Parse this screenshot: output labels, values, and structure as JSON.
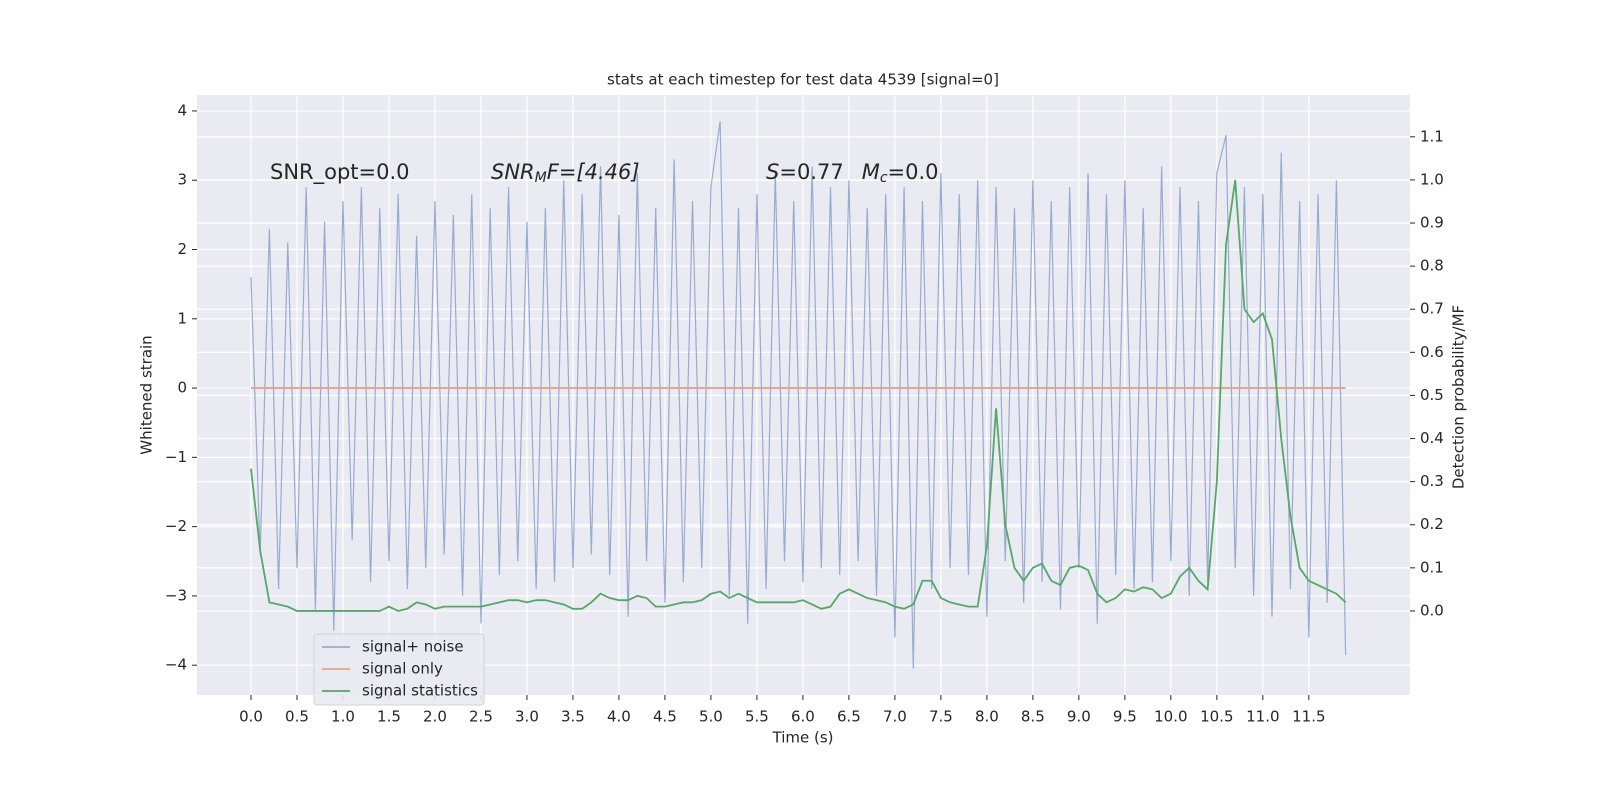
{
  "chart_data": {
    "type": "line",
    "title": "stats at each timestep for test data 4539 [signal=0]",
    "xlabel": "Time (s)",
    "ylabel": "Whitened strain",
    "y2label": "Detection probability/MF",
    "annotations": [
      {
        "parts": [
          "SNR_opt=0.0"
        ]
      },
      {
        "parts": [
          "SNR",
          "M",
          "F=[4.46]"
        ]
      },
      {
        "parts": [
          "S",
          "=0.77",
          "M",
          "c",
          "=0.0"
        ]
      }
    ],
    "x": [
      0.0,
      0.1,
      0.2,
      0.3,
      0.4,
      0.5,
      0.6,
      0.7,
      0.8,
      0.9,
      1.0,
      1.1,
      1.2,
      1.3,
      1.4,
      1.5,
      1.6,
      1.7,
      1.8,
      1.9,
      2.0,
      2.1,
      2.2,
      2.3,
      2.4,
      2.5,
      2.6,
      2.7,
      2.8,
      2.9,
      3.0,
      3.1,
      3.2,
      3.3,
      3.4,
      3.5,
      3.6,
      3.7,
      3.8,
      3.9,
      4.0,
      4.1,
      4.2,
      4.3,
      4.4,
      4.5,
      4.6,
      4.7,
      4.8,
      4.9,
      5.0,
      5.1,
      5.2,
      5.3,
      5.4,
      5.5,
      5.6,
      5.7,
      5.8,
      5.9,
      6.0,
      6.1,
      6.2,
      6.3,
      6.4,
      6.5,
      6.6,
      6.7,
      6.8,
      6.9,
      7.0,
      7.1,
      7.2,
      7.3,
      7.4,
      7.5,
      7.6,
      7.7,
      7.8,
      7.9,
      8.0,
      8.1,
      8.2,
      8.3,
      8.4,
      8.5,
      8.6,
      8.7,
      8.8,
      8.9,
      9.0,
      9.1,
      9.2,
      9.3,
      9.4,
      9.5,
      9.6,
      9.7,
      9.8,
      9.9,
      10.0,
      10.1,
      10.2,
      10.3,
      10.4,
      10.5,
      10.6,
      10.7,
      10.8,
      10.9,
      11.0,
      11.1,
      11.2,
      11.3,
      11.4,
      11.5,
      11.6,
      11.7,
      11.8,
      11.9
    ],
    "series": [
      {
        "name": "signal+ noise",
        "color": "#9aabd0",
        "values": [
          1.6,
          -2.4,
          2.3,
          -2.9,
          2.1,
          -2.6,
          2.9,
          -3.2,
          2.4,
          -3.5,
          2.7,
          -2.2,
          2.9,
          -2.8,
          2.6,
          -2.5,
          2.8,
          -2.9,
          2.2,
          -2.6,
          2.7,
          -2.4,
          2.5,
          -3.0,
          2.8,
          -3.4,
          2.6,
          -2.7,
          2.9,
          -2.5,
          2.4,
          -2.9,
          2.6,
          -2.8,
          3.0,
          -2.6,
          2.8,
          -2.4,
          3.2,
          -2.7,
          2.5,
          -3.3,
          3.1,
          -2.5,
          2.6,
          -3.1,
          3.3,
          -2.8,
          2.7,
          -2.6,
          2.9,
          3.85,
          -3.0,
          2.6,
          -3.4,
          2.8,
          -2.9,
          3.1,
          -2.5,
          2.7,
          -2.8,
          3.2,
          -2.6,
          2.9,
          -2.7,
          3.0,
          -2.5,
          2.6,
          -3.0,
          2.8,
          -3.6,
          2.9,
          -4.05,
          2.7,
          -2.9,
          3.1,
          -2.6,
          2.8,
          -2.7,
          3.0,
          -3.3,
          2.9,
          -2.5,
          2.6,
          -3.1,
          3.0,
          -2.8,
          2.7,
          -3.2,
          2.9,
          -2.6,
          3.1,
          -3.4,
          2.8,
          -2.7,
          3.0,
          -2.9,
          2.6,
          -2.8,
          3.2,
          -2.5,
          2.9,
          -3.0,
          2.7,
          -2.8,
          3.1,
          3.65,
          -2.6,
          2.9,
          -3.0,
          2.8,
          -3.3,
          3.4,
          -2.9,
          2.7,
          -3.6,
          2.8,
          -3.1,
          3.0,
          -3.85
        ]
      },
      {
        "name": "signal only",
        "color": "#e0a48a",
        "values": [
          0,
          0,
          0,
          0,
          0,
          0,
          0,
          0,
          0,
          0,
          0,
          0,
          0,
          0,
          0,
          0,
          0,
          0,
          0,
          0,
          0,
          0,
          0,
          0,
          0,
          0,
          0,
          0,
          0,
          0,
          0,
          0,
          0,
          0,
          0,
          0,
          0,
          0,
          0,
          0,
          0,
          0,
          0,
          0,
          0,
          0,
          0,
          0,
          0,
          0,
          0,
          0,
          0,
          0,
          0,
          0,
          0,
          0,
          0,
          0,
          0,
          0,
          0,
          0,
          0,
          0,
          0,
          0,
          0,
          0,
          0,
          0,
          0,
          0,
          0,
          0,
          0,
          0,
          0,
          0,
          0,
          0,
          0,
          0,
          0,
          0,
          0,
          0,
          0,
          0,
          0,
          0,
          0,
          0,
          0,
          0,
          0,
          0,
          0,
          0,
          0,
          0,
          0,
          0,
          0,
          0,
          0,
          0,
          0,
          0,
          0,
          0,
          0,
          0,
          0,
          0,
          0,
          0,
          0,
          0
        ]
      },
      {
        "name": "signal statistics",
        "color": "#55a868",
        "axis": "y2",
        "values": [
          0.33,
          0.14,
          0.02,
          0.015,
          0.01,
          0.0,
          0.0,
          0.0,
          0.0,
          0.0,
          0.0,
          0.0,
          0.0,
          0.0,
          0.0,
          0.01,
          0.0,
          0.005,
          0.02,
          0.015,
          0.005,
          0.01,
          0.01,
          0.01,
          0.01,
          0.01,
          0.015,
          0.02,
          0.025,
          0.025,
          0.02,
          0.025,
          0.025,
          0.02,
          0.015,
          0.005,
          0.005,
          0.02,
          0.04,
          0.03,
          0.025,
          0.025,
          0.035,
          0.03,
          0.01,
          0.01,
          0.015,
          0.02,
          0.02,
          0.025,
          0.04,
          0.045,
          0.03,
          0.04,
          0.03,
          0.02,
          0.02,
          0.02,
          0.02,
          0.02,
          0.025,
          0.015,
          0.005,
          0.01,
          0.04,
          0.05,
          0.04,
          0.03,
          0.025,
          0.02,
          0.01,
          0.005,
          0.015,
          0.07,
          0.07,
          0.03,
          0.02,
          0.015,
          0.01,
          0.01,
          0.15,
          0.47,
          0.2,
          0.1,
          0.07,
          0.1,
          0.11,
          0.07,
          0.06,
          0.1,
          0.105,
          0.095,
          0.04,
          0.02,
          0.03,
          0.05,
          0.045,
          0.055,
          0.05,
          0.03,
          0.04,
          0.08,
          0.1,
          0.07,
          0.05,
          0.3,
          0.85,
          1.0,
          0.7,
          0.67,
          0.69,
          0.63,
          0.4,
          0.22,
          0.1,
          0.07,
          0.06,
          0.05,
          0.04,
          0.02
        ]
      }
    ],
    "xlim": [
      -0.587,
      12.6
    ],
    "ylim": [
      -4.43,
      4.23
    ],
    "y2lim": [
      -0.195,
      1.197
    ],
    "xticks": [
      {
        "value": 0,
        "label": "0.0"
      },
      {
        "value": 0.5,
        "label": "0.5"
      },
      {
        "value": 1,
        "label": "1.0"
      },
      {
        "value": 1.5,
        "label": "1.5"
      },
      {
        "value": 2,
        "label": "2.0"
      },
      {
        "value": 2.5,
        "label": "2.5"
      },
      {
        "value": 3,
        "label": "3.0"
      },
      {
        "value": 3.5,
        "label": "3.5"
      },
      {
        "value": 4,
        "label": "4.0"
      },
      {
        "value": 4.5,
        "label": "4.5"
      },
      {
        "value": 5,
        "label": "5.0"
      },
      {
        "value": 5.5,
        "label": "5.5"
      },
      {
        "value": 6,
        "label": "6.0"
      },
      {
        "value": 6.5,
        "label": "6.5"
      },
      {
        "value": 7,
        "label": "7.0"
      },
      {
        "value": 7.5,
        "label": "7.5"
      },
      {
        "value": 8,
        "label": "8.0"
      },
      {
        "value": 8.5,
        "label": "8.5"
      },
      {
        "value": 9,
        "label": "9.0"
      },
      {
        "value": 9.5,
        "label": "9.5"
      },
      {
        "value": 10,
        "label": "10.0"
      },
      {
        "value": 10.5,
        "label": "10.5"
      },
      {
        "value": 11,
        "label": "11.0"
      },
      {
        "value": 11.5,
        "label": "11.5"
      }
    ],
    "yticks": [
      {
        "value": -4,
        "label": "−4"
      },
      {
        "value": -3,
        "label": "−3"
      },
      {
        "value": -2,
        "label": "−2"
      },
      {
        "value": -1,
        "label": "−1"
      },
      0,
      1,
      2,
      3,
      4
    ],
    "y2ticks": [
      {
        "value": 0,
        "label": "0.0"
      },
      {
        "value": 0.1,
        "label": "0.1"
      },
      {
        "value": 0.2,
        "label": "0.2"
      },
      {
        "value": 0.3,
        "label": "0.3"
      },
      {
        "value": 0.4,
        "label": "0.4"
      },
      {
        "value": 0.5,
        "label": "0.5"
      },
      {
        "value": 0.6,
        "label": "0.6"
      },
      {
        "value": 0.7,
        "label": "0.7"
      },
      {
        "value": 0.8,
        "label": "0.8"
      },
      {
        "value": 0.9,
        "label": "0.9"
      },
      {
        "value": 1,
        "label": "1.0"
      },
      {
        "value": 1.1,
        "label": "1.1"
      }
    ],
    "grid": true,
    "legend": "lower left"
  }
}
